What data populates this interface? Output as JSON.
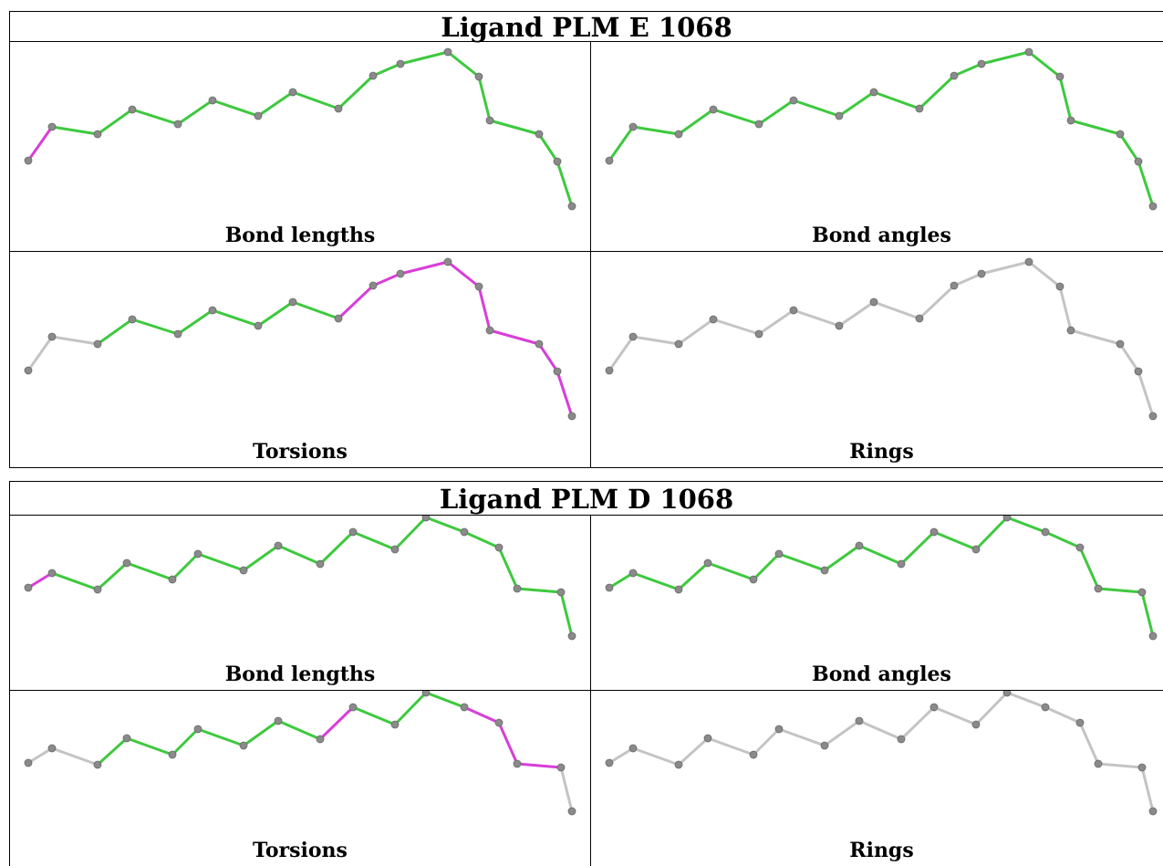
{
  "blocks": [
    {
      "title": "Ligand PLM E 1068",
      "panels": [
        {
          "label": "Bond lengths",
          "bond_colors": [
            "magenta",
            "green",
            "green",
            "green",
            "green",
            "green",
            "green",
            "green",
            "green",
            "green",
            "green",
            "green",
            "green",
            "green",
            "green",
            "green",
            "green"
          ]
        },
        {
          "label": "Bond angles",
          "bond_colors": [
            "green",
            "green",
            "green",
            "green",
            "green",
            "green",
            "green",
            "green",
            "green",
            "green",
            "green",
            "green",
            "green",
            "green",
            "green",
            "green",
            "green"
          ]
        },
        {
          "label": "Torsions",
          "bond_colors": [
            "gray",
            "gray",
            "green",
            "green",
            "green",
            "green",
            "green",
            "green",
            "magenta",
            "magenta",
            "magenta",
            "magenta",
            "magenta",
            "magenta",
            "magenta",
            "magenta",
            "gray"
          ]
        },
        {
          "label": "Rings",
          "bond_colors": [
            "gray",
            "gray",
            "gray",
            "gray",
            "gray",
            "gray",
            "gray",
            "gray",
            "gray",
            "gray",
            "gray",
            "gray",
            "gray",
            "gray",
            "gray",
            "gray",
            "gray"
          ]
        }
      ]
    },
    {
      "title": "Ligand PLM D 1068",
      "panels": [
        {
          "label": "Bond lengths",
          "bond_colors": [
            "magenta",
            "green",
            "green",
            "green",
            "green",
            "green",
            "green",
            "green",
            "green",
            "green",
            "green",
            "green",
            "green",
            "green",
            "green",
            "green",
            "green"
          ]
        },
        {
          "label": "Bond angles",
          "bond_colors": [
            "green",
            "green",
            "green",
            "green",
            "green",
            "green",
            "green",
            "green",
            "green",
            "green",
            "green",
            "green",
            "green",
            "green",
            "green",
            "green",
            "green"
          ]
        },
        {
          "label": "Torsions",
          "bond_colors": [
            "gray",
            "gray",
            "green",
            "green",
            "green",
            "green",
            "green",
            "green",
            "magenta",
            "green",
            "green",
            "green",
            "magenta",
            "magenta",
            "magenta",
            "gray",
            "gray"
          ]
        },
        {
          "label": "Rings",
          "bond_colors": [
            "gray",
            "gray",
            "gray",
            "gray",
            "gray",
            "gray",
            "gray",
            "gray",
            "gray",
            "gray",
            "gray",
            "gray",
            "gray",
            "gray",
            "gray",
            "gray",
            "gray"
          ]
        }
      ]
    }
  ],
  "colors": {
    "green": "#3ec93e",
    "magenta": "#d83ed8",
    "gray": "#c4c4c4",
    "atom": "#8a8a8a"
  }
}
